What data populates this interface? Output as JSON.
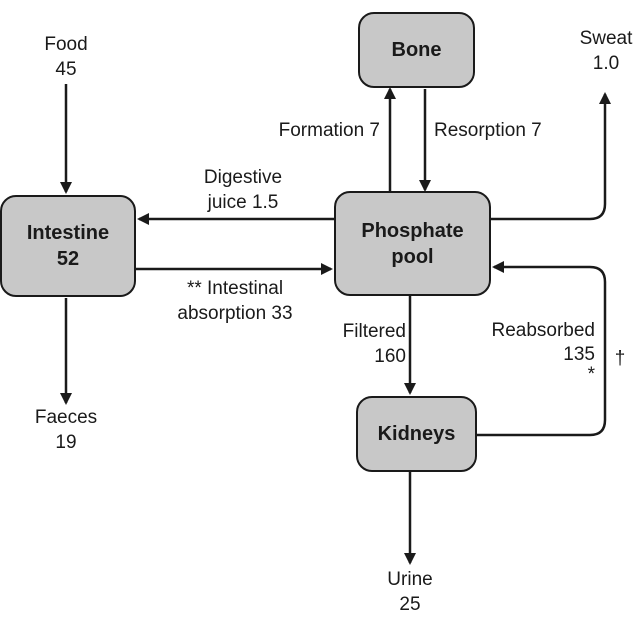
{
  "nodes": {
    "bone": {
      "label": "Bone"
    },
    "intestine": {
      "line1": "Intestine",
      "line2": "52"
    },
    "pool": {
      "line1": "Phosphate",
      "line2": "pool"
    },
    "kidneys": {
      "label": "Kidneys"
    }
  },
  "labels": {
    "food": {
      "line1": "Food",
      "line2": "45"
    },
    "sweat": {
      "line1": "Sweat",
      "line2": "1.0"
    },
    "formation": "Formation 7",
    "resorption": "Resorption 7",
    "digestive": {
      "line1": "Digestive",
      "line2": "juice 1.5"
    },
    "absorption": {
      "line1": "** Intestinal",
      "line2": "absorption 33"
    },
    "filtered": {
      "line1": "Filtered",
      "line2": "160"
    },
    "reabsorbed": {
      "line1": "Reabsorbed",
      "line2": "135",
      "line3": "*"
    },
    "dagger": "†",
    "faeces": {
      "line1": "Faeces",
      "line2": "19"
    },
    "urine": {
      "line1": "Urine",
      "line2": "25"
    }
  },
  "colors": {
    "node_fill": "#c8c8c8",
    "stroke": "#1a1a1a"
  }
}
